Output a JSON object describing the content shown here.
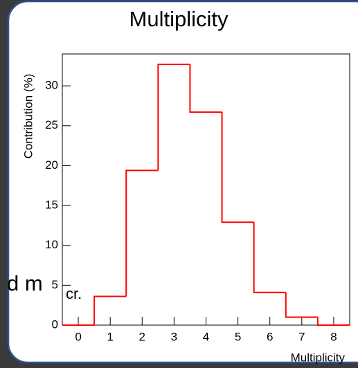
{
  "chart_data": {
    "type": "histogram",
    "title": "Multiplicity",
    "x_label": "Multiplicity",
    "y_label": "Contribution (%)",
    "bins": [
      -0.5,
      0.5,
      1.5,
      2.5,
      3.5,
      4.5,
      5.5,
      6.5,
      7.5,
      8.5
    ],
    "values": [
      0,
      3.6,
      19.4,
      32.7,
      26.7,
      12.9,
      4.1,
      1.0,
      0
    ],
    "color": "#ff0000",
    "xlim": [
      -0.5,
      8.5
    ],
    "xticks": [
      0,
      1,
      2,
      3,
      4,
      5,
      6,
      7,
      8
    ],
    "ylim": [
      0,
      34
    ],
    "yticks": [
      0,
      5,
      10,
      15,
      20,
      25,
      30
    ],
    "annotation": "d m",
    "annotation_subscript": "cr."
  }
}
